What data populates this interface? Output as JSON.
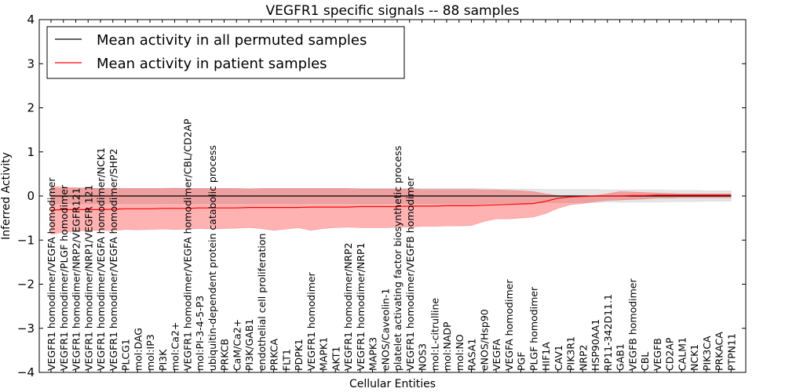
{
  "chart_data": {
    "type": "line",
    "title": "VEGFR1 specific signals -- 88 samples",
    "xlabel": "Cellular Entities",
    "ylabel": "Inferred Activity",
    "ylim": [
      -4,
      4
    ],
    "yticks": [
      "4",
      "3",
      "2",
      "1",
      "0",
      "−1",
      "−2",
      "−3",
      "−4"
    ],
    "ytick_values": [
      4,
      3,
      2,
      1,
      0,
      -1,
      -2,
      -3,
      -4
    ],
    "grid": false,
    "legend_position": "top-left",
    "categories": [
      "VEGFR1 homodimer/VEGFA homodimer",
      "VEGFR1 homodimer/PLGF homodimer",
      "VEGFR1 homodimer/NRP2/VEGFR121",
      "VEGFR1 homodimer/NRP1/VEGFR 121",
      "VEGFR1 homodimer/VEGFA homodimer/NCK1",
      "VEGFR1 homodimer/VEGFA homodimer/SHP2",
      "PLCG1",
      "mol:DAG",
      "mol:IP3",
      "PI3K",
      "mol:Ca2+",
      "VEGFR1 homodimer/VEGFA homodimer/CBL/CD2AP",
      "mol:PI-3-4-5-P3",
      "ubiquitin-dependent protein catabolic process",
      "PRKCB",
      "CaM/Ca2+",
      "PI3K/GAB1",
      "endothelial cell proliferation",
      "PRKCA",
      "FLT1",
      "PDPK1",
      "VEGFR1 homodimer",
      "MAPK1",
      "AKT1",
      "VEGFR1 homodimer/NRP2",
      "VEGFR1 homodimer/NRP1",
      "MAPK3",
      "eNOS/Caveolin-1",
      "platelet activating factor biosynthetic process",
      "VEGFR1 homodimer/VEGFB homodimer",
      "NOS3",
      "mol:L-citrulline",
      "mol:NADP",
      "mol:NO",
      "RASA1",
      "eNOS/Hsp90",
      "VEGFA",
      "VEGFA homodimer",
      "PGF",
      "PLGF homodimer",
      "HIF1A",
      "CAV1",
      "PIK3R1",
      "NRP2",
      "HSP90AA1",
      "RP11-342D11.1",
      "GAB1",
      "VEGFB homodimer",
      "CBL",
      "VEGFB",
      "CD2AP",
      "CALM1",
      "NCK1",
      "PIK3CA",
      "PRKACA",
      "PTPN11"
    ],
    "series": [
      {
        "name": "Mean activity in all permuted samples",
        "color": "#000000",
        "band_color": "#999999",
        "values": [
          0,
          0,
          0,
          0,
          0,
          0,
          0,
          0,
          0,
          0,
          0,
          0,
          0,
          0,
          0,
          0,
          0,
          0,
          0,
          0,
          0,
          0,
          0,
          0,
          0,
          0,
          0,
          0,
          0,
          0,
          0,
          0,
          0,
          0,
          0,
          0,
          0,
          0,
          0,
          0,
          0,
          0,
          0,
          0,
          0,
          0,
          0,
          0,
          0,
          0,
          0,
          0,
          0,
          0,
          0,
          0
        ],
        "lower": [
          -0.17,
          -0.17,
          -0.17,
          -0.17,
          -0.17,
          -0.17,
          -0.17,
          -0.17,
          -0.17,
          -0.17,
          -0.17,
          -0.17,
          -0.17,
          -0.17,
          -0.17,
          -0.17,
          -0.17,
          -0.17,
          -0.17,
          -0.17,
          -0.17,
          -0.17,
          -0.17,
          -0.17,
          -0.17,
          -0.17,
          -0.17,
          -0.17,
          -0.17,
          -0.17,
          -0.17,
          -0.17,
          -0.17,
          -0.17,
          -0.17,
          -0.17,
          -0.16,
          -0.16,
          -0.16,
          -0.16,
          -0.15,
          -0.15,
          -0.15,
          -0.15,
          -0.15,
          -0.14,
          -0.14,
          -0.14,
          -0.14,
          -0.14,
          -0.13,
          -0.13,
          -0.13,
          -0.12,
          -0.12,
          -0.12
        ],
        "upper": [
          0.17,
          0.17,
          0.17,
          0.17,
          0.17,
          0.17,
          0.17,
          0.17,
          0.17,
          0.17,
          0.17,
          0.17,
          0.17,
          0.17,
          0.17,
          0.17,
          0.17,
          0.17,
          0.17,
          0.17,
          0.17,
          0.17,
          0.17,
          0.17,
          0.17,
          0.17,
          0.17,
          0.17,
          0.17,
          0.17,
          0.17,
          0.17,
          0.17,
          0.17,
          0.17,
          0.17,
          0.16,
          0.16,
          0.16,
          0.16,
          0.15,
          0.15,
          0.15,
          0.15,
          0.15,
          0.14,
          0.14,
          0.14,
          0.14,
          0.14,
          0.13,
          0.13,
          0.13,
          0.12,
          0.12,
          0.12
        ]
      },
      {
        "name": "Mean activity in patient samples",
        "color": "#ff0000",
        "band_color": "#ff0000",
        "values": [
          -0.32,
          -0.31,
          -0.31,
          -0.31,
          -0.31,
          -0.3,
          -0.29,
          -0.29,
          -0.29,
          -0.28,
          -0.28,
          -0.28,
          -0.27,
          -0.27,
          -0.27,
          -0.27,
          -0.26,
          -0.26,
          -0.26,
          -0.26,
          -0.26,
          -0.25,
          -0.25,
          -0.25,
          -0.25,
          -0.24,
          -0.24,
          -0.24,
          -0.24,
          -0.23,
          -0.23,
          -0.23,
          -0.22,
          -0.22,
          -0.22,
          -0.21,
          -0.2,
          -0.19,
          -0.18,
          -0.17,
          -0.12,
          -0.05,
          -0.02,
          -0.01,
          0,
          0,
          0,
          0.01,
          0.01,
          0.02,
          0.02,
          0.02,
          0.02,
          0.02,
          0.02,
          0.02
        ],
        "lower": [
          -0.87,
          -0.82,
          -0.8,
          -0.78,
          -0.78,
          -0.79,
          -0.76,
          -0.77,
          -0.76,
          -0.75,
          -0.76,
          -0.75,
          -0.74,
          -0.75,
          -0.74,
          -0.73,
          -0.72,
          -0.74,
          -0.78,
          -0.75,
          -0.72,
          -0.78,
          -0.74,
          -0.72,
          -0.71,
          -0.72,
          -0.72,
          -0.72,
          -0.71,
          -0.71,
          -0.69,
          -0.69,
          -0.68,
          -0.68,
          -0.67,
          -0.58,
          -0.52,
          -0.52,
          -0.5,
          -0.48,
          -0.4,
          -0.28,
          -0.2,
          -0.17,
          -0.13,
          -0.1,
          -0.09,
          -0.08,
          -0.07,
          -0.05,
          -0.05,
          -0.04,
          -0.04,
          -0.04,
          -0.04,
          -0.04
        ],
        "upper": [
          0.22,
          0.2,
          0.19,
          0.18,
          0.17,
          0.18,
          0.17,
          0.17,
          0.17,
          0.17,
          0.18,
          0.17,
          0.17,
          0.17,
          0.17,
          0.17,
          0.16,
          0.17,
          0.17,
          0.17,
          0.17,
          0.17,
          0.17,
          0.17,
          0.17,
          0.16,
          0.16,
          0.16,
          0.16,
          0.16,
          0.15,
          0.15,
          0.15,
          0.15,
          0.15,
          0.14,
          0.14,
          0.13,
          0.12,
          0.1,
          0.05,
          0.01,
          -0.02,
          -0.01,
          0.01,
          0.05,
          0.1,
          0.09,
          0.08,
          0.07,
          0.06,
          0.05,
          0.05,
          0.05,
          0.05,
          0.05
        ]
      }
    ]
  }
}
